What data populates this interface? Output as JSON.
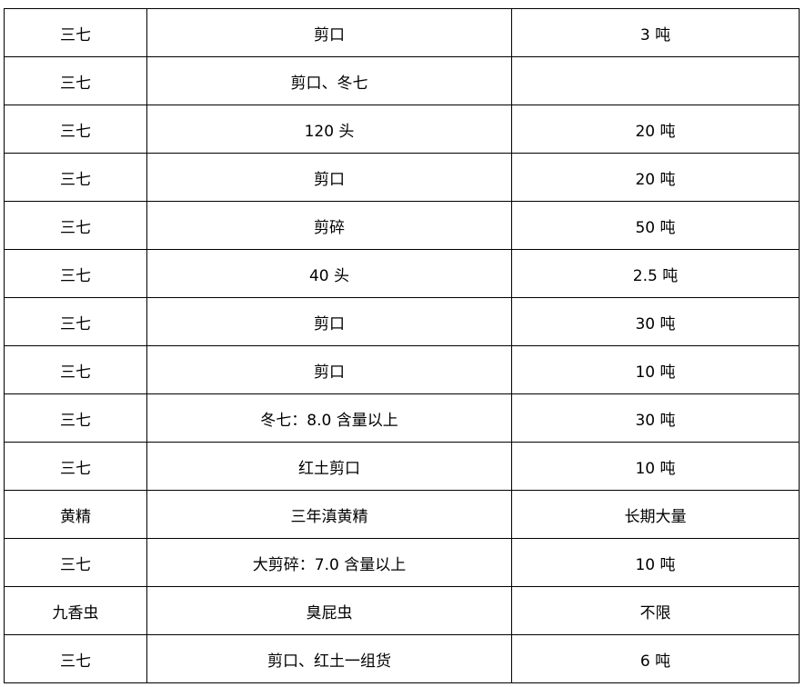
{
  "rows": [
    [
      "三七",
      "剪口",
      "3 吨"
    ],
    [
      "三七",
      "剪口、冬七",
      ""
    ],
    [
      "三七",
      "120 头",
      "20 吨"
    ],
    [
      "三七",
      "剪口",
      "20 吨"
    ],
    [
      "三七",
      "剪碎",
      "50 吨"
    ],
    [
      "三七",
      "40 头",
      "2.5 吨"
    ],
    [
      "三七",
      "剪口",
      "30 吨"
    ],
    [
      "三七",
      "剪口",
      "10 吨"
    ],
    [
      "三七",
      "冬七：8.0 含量以上",
      "30 吨"
    ],
    [
      "三七",
      "红土剪口",
      "10 吨"
    ],
    [
      "黄精",
      "三年滇黄精",
      "长期大量"
    ],
    [
      "三七",
      "大剪碎：7.0 含量以上",
      "10 吨"
    ],
    [
      "九香虫",
      "臭屁虫",
      "不限"
    ],
    [
      "三七",
      "剪口、红土一组货",
      "6 吨"
    ]
  ]
}
